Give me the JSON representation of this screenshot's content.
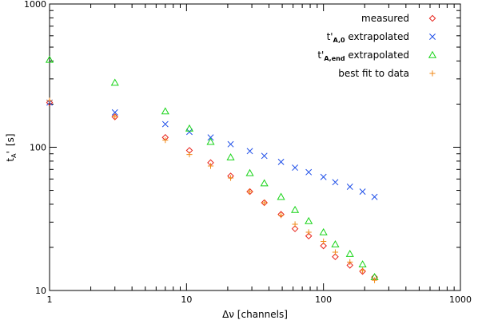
{
  "chart_data": {
    "type": "scatter",
    "title": "",
    "xlabel": "Δν [channels]",
    "ylabel_main": "t",
    "ylabel_sub": "A",
    "ylabel_prime": "'",
    "ylabel_unit": "[s]",
    "x_scale": "log",
    "y_scale": "log",
    "xlim": [
      1,
      1000
    ],
    "ylim": [
      10,
      1000
    ],
    "x_tick_labels": [
      "1",
      "10",
      "100",
      "1000"
    ],
    "y_tick_labels": [
      "10",
      "100",
      "1000"
    ],
    "legend_position": "top-right",
    "legend": [
      {
        "main": "measured",
        "sub": "",
        "after": "",
        "marker": "diamond",
        "color": "#e8241c"
      },
      {
        "main": "t'",
        "sub": "A,0",
        "after": " extrapolated",
        "marker": "x",
        "color": "#1f4fe8"
      },
      {
        "main": "t'",
        "sub": "A,end",
        "after": " extrapolated",
        "marker": "triangle",
        "color": "#18d418"
      },
      {
        "main": "best fit to data",
        "sub": "",
        "after": "",
        "marker": "plus",
        "color": "#f08a18"
      }
    ],
    "series": [
      {
        "name": "measured",
        "marker": "diamond",
        "color": "#e8241c",
        "x": [
          1,
          3,
          7,
          10.5,
          15,
          21,
          29,
          37,
          49,
          62,
          78,
          100,
          122,
          156,
          193,
          236
        ],
        "y": [
          205,
          163,
          117,
          95,
          78,
          63,
          49,
          41,
          34,
          27,
          24,
          20.5,
          17.2,
          15,
          13.6,
          12.4
        ]
      },
      {
        "name": "t'A,0 extrapolated",
        "marker": "x",
        "color": "#1f4fe8",
        "x": [
          1,
          3,
          7,
          10.5,
          15,
          21,
          29,
          37,
          49,
          62,
          78,
          100,
          122,
          156,
          193,
          236
        ],
        "y": [
          205,
          175,
          145,
          128,
          117,
          105,
          94,
          87,
          79,
          72,
          67,
          62,
          57,
          53,
          49,
          45
        ]
      },
      {
        "name": "t'A,end extrapolated",
        "marker": "triangle",
        "color": "#18d418",
        "x": [
          1,
          3,
          7,
          10.5,
          15,
          21,
          29,
          37,
          49,
          62,
          78,
          100,
          122,
          156,
          193,
          236
        ],
        "y": [
          408,
          282,
          178,
          135,
          109,
          85,
          66,
          56,
          45,
          36.5,
          30.5,
          25.5,
          21,
          18,
          15.2,
          12.4
        ]
      },
      {
        "name": "best fit to data",
        "marker": "plus",
        "color": "#f08a18",
        "x": [
          1,
          3,
          7,
          10.5,
          15,
          21,
          29,
          37,
          49,
          62,
          78,
          100,
          122,
          156,
          193,
          236
        ],
        "y": [
          212,
          164,
          112,
          89,
          74,
          61,
          49,
          41,
          33.5,
          29,
          25.5,
          22,
          18.5,
          15.8,
          13.8,
          11.8
        ]
      }
    ]
  }
}
